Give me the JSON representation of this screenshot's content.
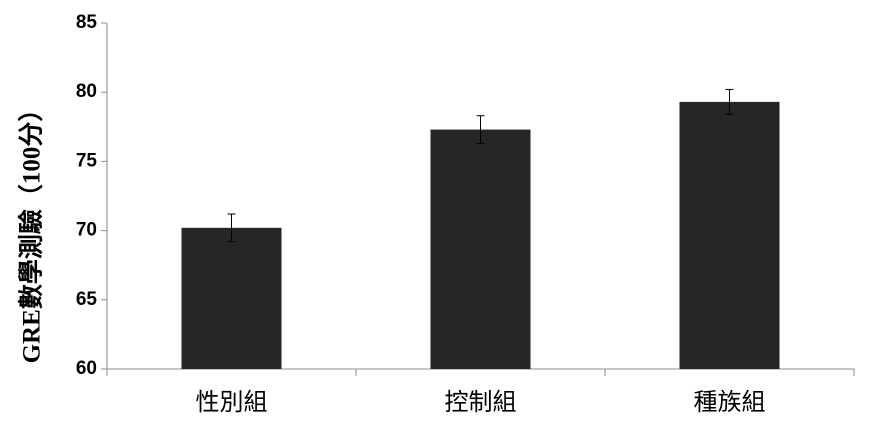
{
  "chart_data": {
    "type": "bar",
    "title": "",
    "xlabel": "",
    "ylabel": "GRE數學測驗（100分）",
    "ylim": [
      60,
      85
    ],
    "yticks": [
      60,
      65,
      70,
      75,
      80,
      85
    ],
    "grid": false,
    "categories": [
      "性別組",
      "控制組",
      "種族組"
    ],
    "values": [
      70.2,
      77.3,
      79.3
    ],
    "errors": [
      1.0,
      1.0,
      0.9
    ],
    "colors": {
      "bar": "#262626",
      "axis": "#8c8c8c",
      "error_bar": "#000000"
    }
  }
}
